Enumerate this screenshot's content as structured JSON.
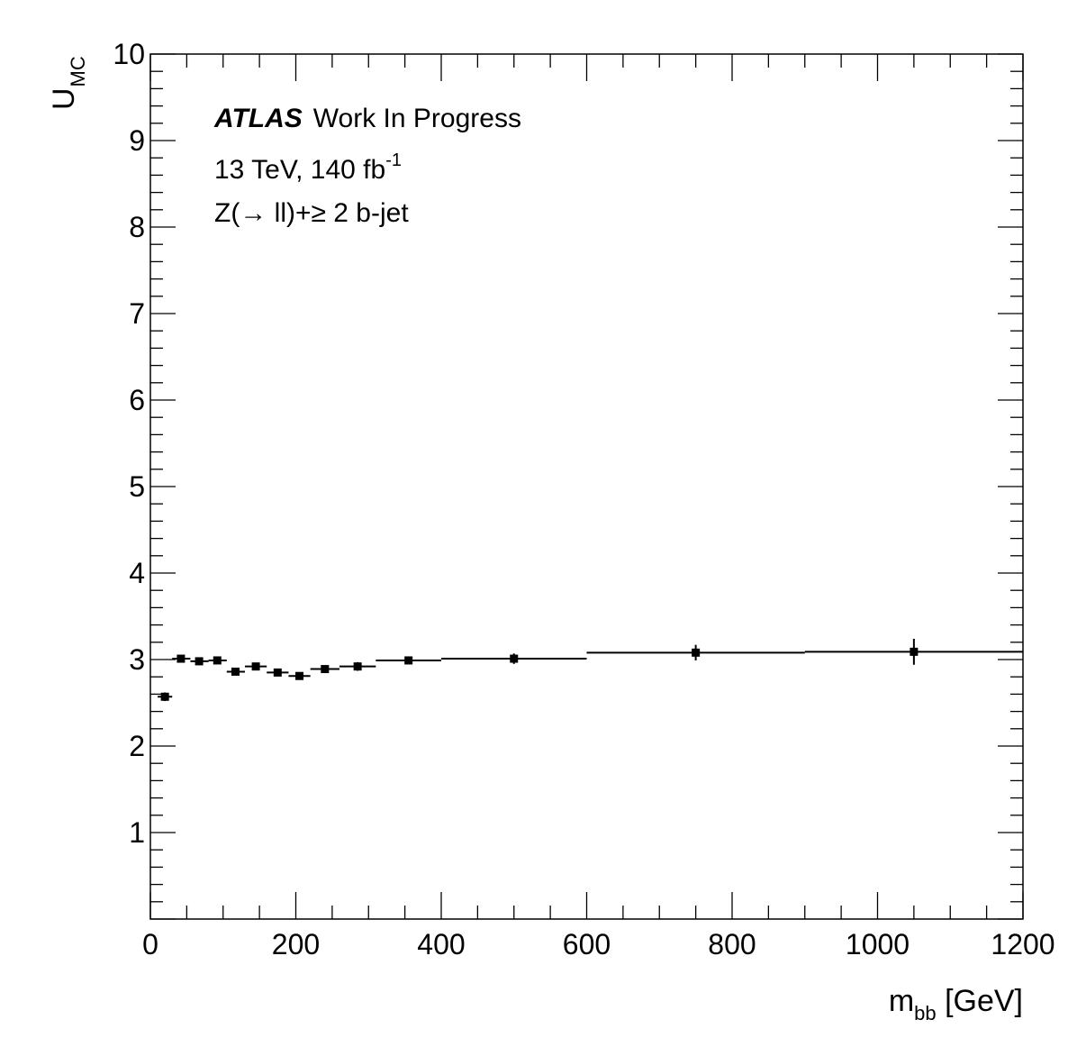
{
  "chart_data": {
    "type": "scatter",
    "title": "",
    "xlabel": {
      "main": "m",
      "sub": "bb",
      "unit": " [GeV]"
    },
    "ylabel": {
      "main": "U",
      "sub": "MC"
    },
    "xlim": [
      0,
      1200
    ],
    "ylim": [
      0,
      10
    ],
    "x_ticks": [
      0,
      200,
      400,
      600,
      800,
      1000,
      1200
    ],
    "y_ticks": [
      1,
      2,
      3,
      4,
      5,
      6,
      7,
      8,
      9,
      10
    ],
    "grid": false,
    "annotations": {
      "experiment": "ATLAS",
      "status": "Work In Progress",
      "lumi_text": "13 TeV, 140 fb",
      "lumi_sup": "-1",
      "region": "Z(→ ll)+≥ 2 b-jet"
    },
    "series": [
      {
        "marker": "square",
        "color": "#000000",
        "points": [
          {
            "x": 20,
            "xlow": 10,
            "xhigh": 30,
            "y": 2.57,
            "yerr": 0.05
          },
          {
            "x": 42,
            "xlow": 30,
            "xhigh": 55,
            "y": 3.01,
            "yerr": 0.03
          },
          {
            "x": 67,
            "xlow": 55,
            "xhigh": 80,
            "y": 2.98,
            "yerr": 0.03
          },
          {
            "x": 92,
            "xlow": 80,
            "xhigh": 105,
            "y": 2.99,
            "yerr": 0.03
          },
          {
            "x": 117,
            "xlow": 105,
            "xhigh": 130,
            "y": 2.86,
            "yerr": 0.03
          },
          {
            "x": 145,
            "xlow": 130,
            "xhigh": 160,
            "y": 2.92,
            "yerr": 0.03
          },
          {
            "x": 175,
            "xlow": 160,
            "xhigh": 190,
            "y": 2.85,
            "yerr": 0.03
          },
          {
            "x": 205,
            "xlow": 190,
            "xhigh": 220,
            "y": 2.81,
            "yerr": 0.03
          },
          {
            "x": 240,
            "xlow": 220,
            "xhigh": 260,
            "y": 2.89,
            "yerr": 0.03
          },
          {
            "x": 285,
            "xlow": 260,
            "xhigh": 310,
            "y": 2.92,
            "yerr": 0.05
          },
          {
            "x": 355,
            "xlow": 310,
            "xhigh": 400,
            "y": 2.99,
            "yerr": 0.04
          },
          {
            "x": 500,
            "xlow": 400,
            "xhigh": 600,
            "y": 3.01,
            "yerr": 0.06
          },
          {
            "x": 750,
            "xlow": 600,
            "xhigh": 900,
            "y": 3.08,
            "yerr": 0.09
          },
          {
            "x": 1050,
            "xlow": 900,
            "xhigh": 1200,
            "y": 3.09,
            "yerr": 0.15
          }
        ]
      }
    ]
  }
}
